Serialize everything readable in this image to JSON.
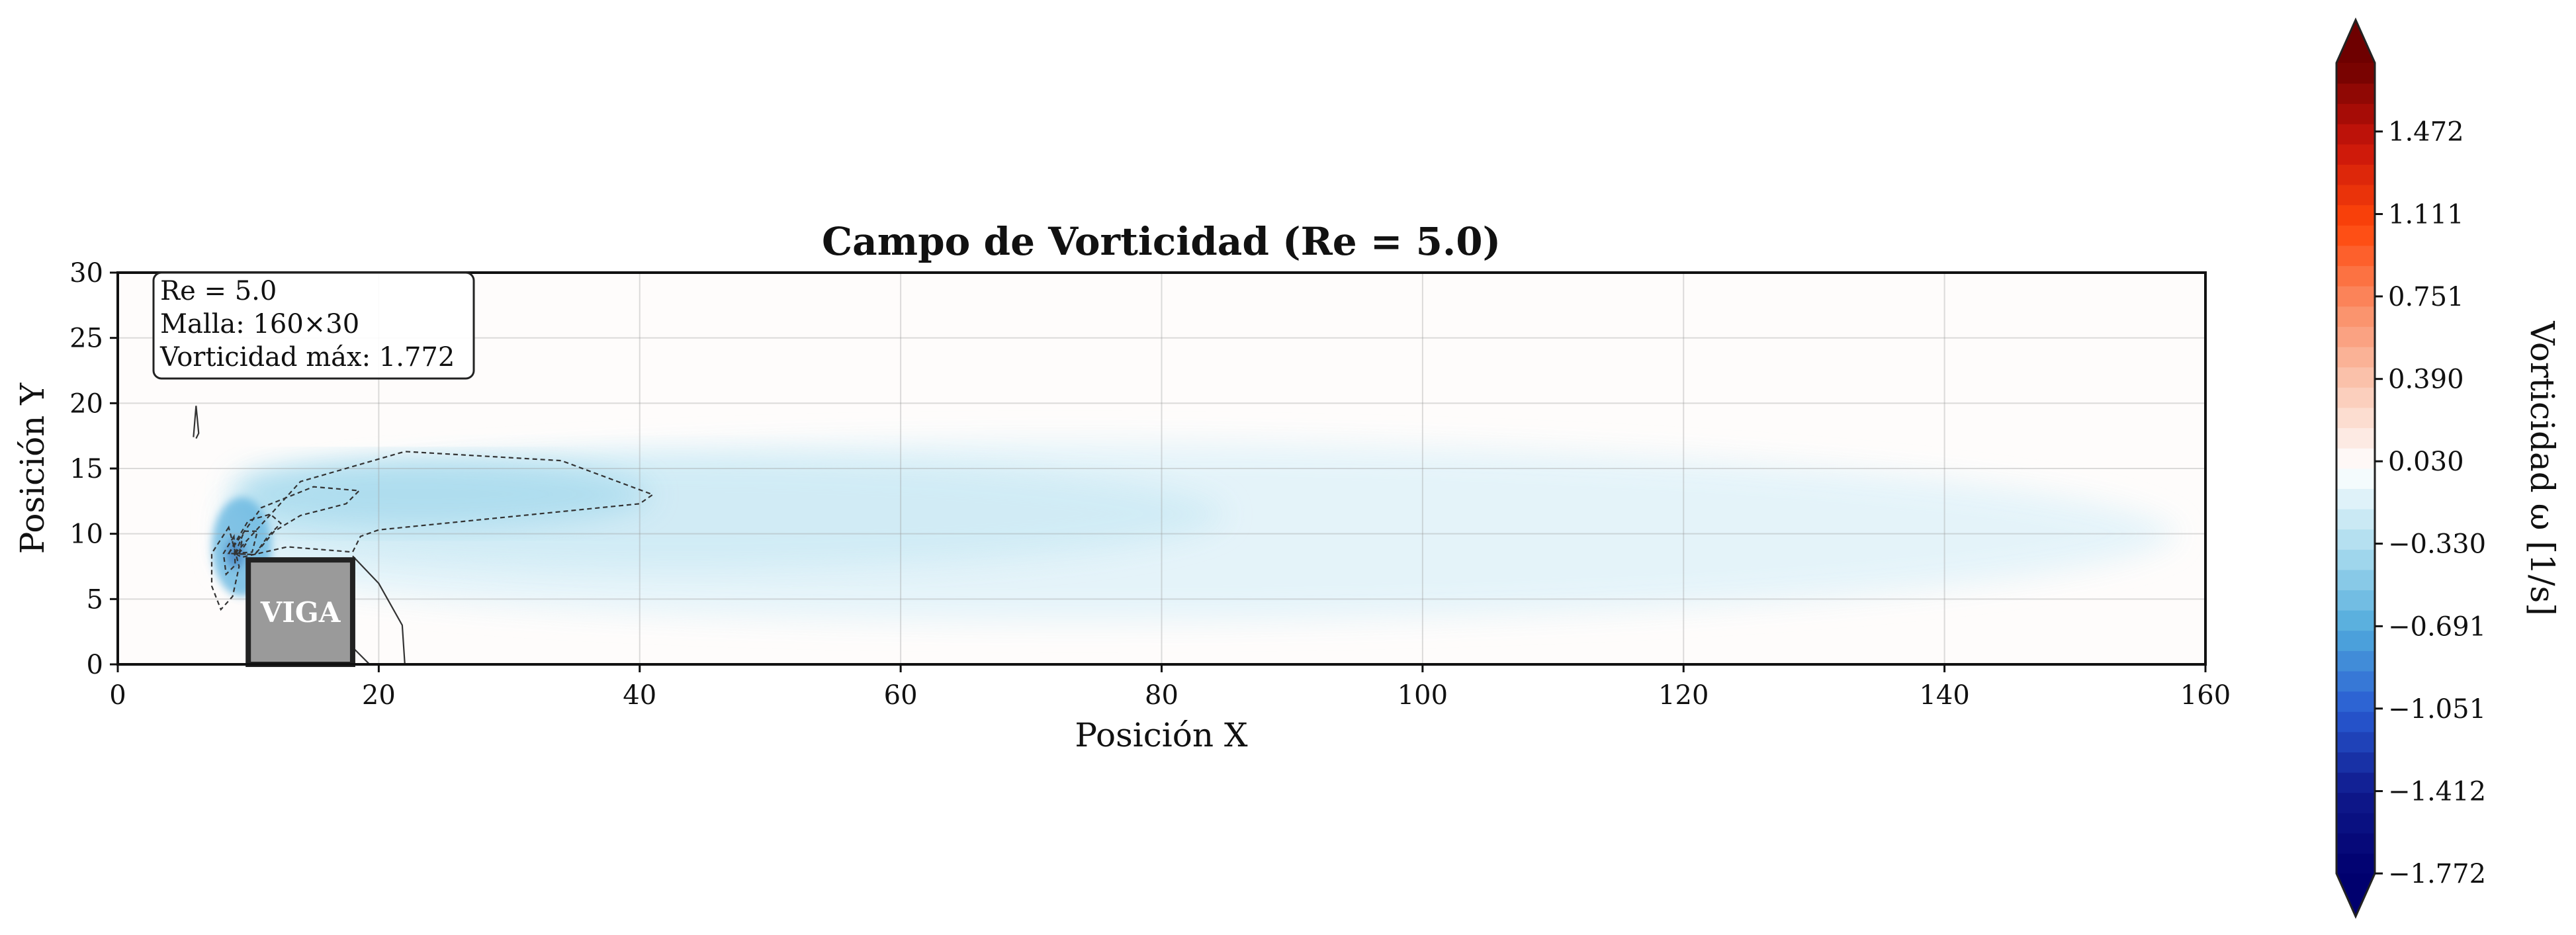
{
  "chart_data": {
    "type": "heatmap",
    "title": "Campo de Vorticidad (Re = 5.0)",
    "xlabel": "Posición X",
    "ylabel": "Posición Y",
    "xlim": [
      0,
      160
    ],
    "ylim": [
      0,
      30
    ],
    "xticks": [
      "0",
      "20",
      "40",
      "60",
      "80",
      "100",
      "120",
      "140",
      "160"
    ],
    "yticks": [
      "0",
      "5",
      "10",
      "15",
      "20",
      "25",
      "30"
    ],
    "grid": true,
    "beam": {
      "label": "VIGA",
      "x": [
        10,
        18
      ],
      "y": [
        0,
        8
      ]
    },
    "info_box": {
      "lines": [
        "Re = 5.0",
        "Malla: 160×30",
        "Vorticidad máx: 1.772"
      ]
    },
    "field": {
      "description_min": -1.772,
      "max_abs": 1.772,
      "features": [
        {
          "kind": "wake",
          "x_start": 8,
          "x_end": 158,
          "y_center": 10,
          "half_height": 8,
          "value": -0.12
        },
        {
          "kind": "wake",
          "x_start": 10,
          "x_end": 85,
          "y_center": 11.5,
          "half_height": 5,
          "value": -0.2
        },
        {
          "kind": "shear",
          "x_start": 9,
          "x_end": 41,
          "y_center": 13,
          "half_height": 3,
          "value": -0.35
        },
        {
          "kind": "core",
          "x": 9,
          "y": 8.5,
          "value": -1.772
        }
      ]
    },
    "colorbar": {
      "label": "Vorticidad ω [1/s]",
      "min": -1.772,
      "max": 1.772,
      "ticks": [
        {
          "value": 1.472,
          "label": "1.472"
        },
        {
          "value": 1.111,
          "label": "1.111"
        },
        {
          "value": 0.751,
          "label": "0.751"
        },
        {
          "value": 0.39,
          "label": "0.390"
        },
        {
          "value": 0.03,
          "label": "0.030"
        },
        {
          "value": -0.33,
          "label": "−0.330"
        },
        {
          "value": -0.691,
          "label": "−0.691"
        },
        {
          "value": -1.051,
          "label": "−1.051"
        },
        {
          "value": -1.412,
          "label": "−1.412"
        },
        {
          "value": -1.772,
          "label": "−1.772"
        }
      ],
      "extend": "both",
      "colormap": "blue-white-red"
    }
  }
}
